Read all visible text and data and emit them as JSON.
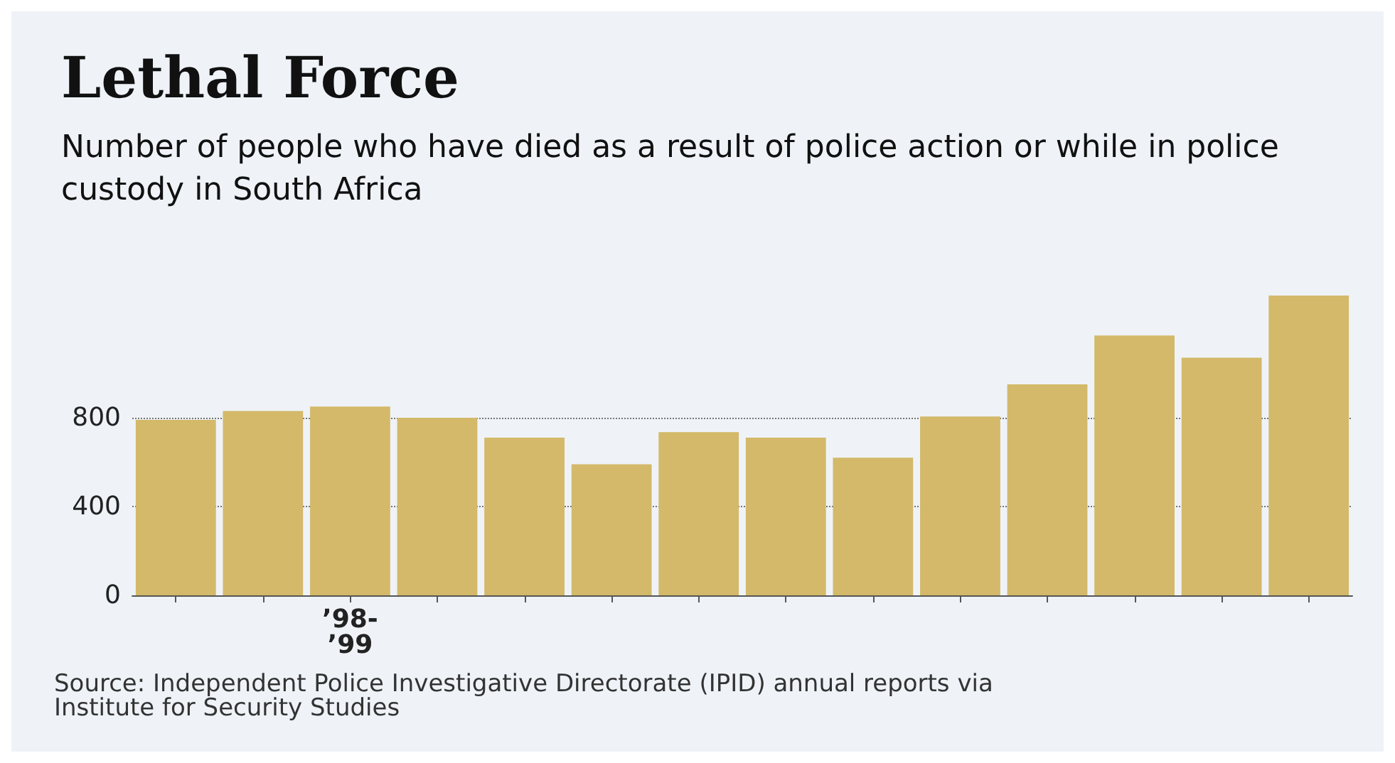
{
  "chart_data": {
    "type": "bar",
    "title": "Lethal Force",
    "subtitle": "Number of people who have died as a result of police action or while in police custody in South Africa",
    "categories": [
      null,
      null,
      "’98-\n’99",
      null,
      null,
      null,
      null,
      null,
      null,
      null,
      null,
      null,
      null,
      null
    ],
    "values": [
      790,
      830,
      850,
      800,
      710,
      590,
      735,
      710,
      620,
      805,
      950,
      1170,
      1070,
      1350
    ],
    "color": "#d3b969",
    "ylim": [
      0,
      1350
    ],
    "yticks": [
      0,
      400,
      800
    ],
    "grid": "y",
    "annotations": [
      "Source: Independent Police Investigative Directorate (IPID) annual reports via Institute for Security Studies"
    ]
  }
}
